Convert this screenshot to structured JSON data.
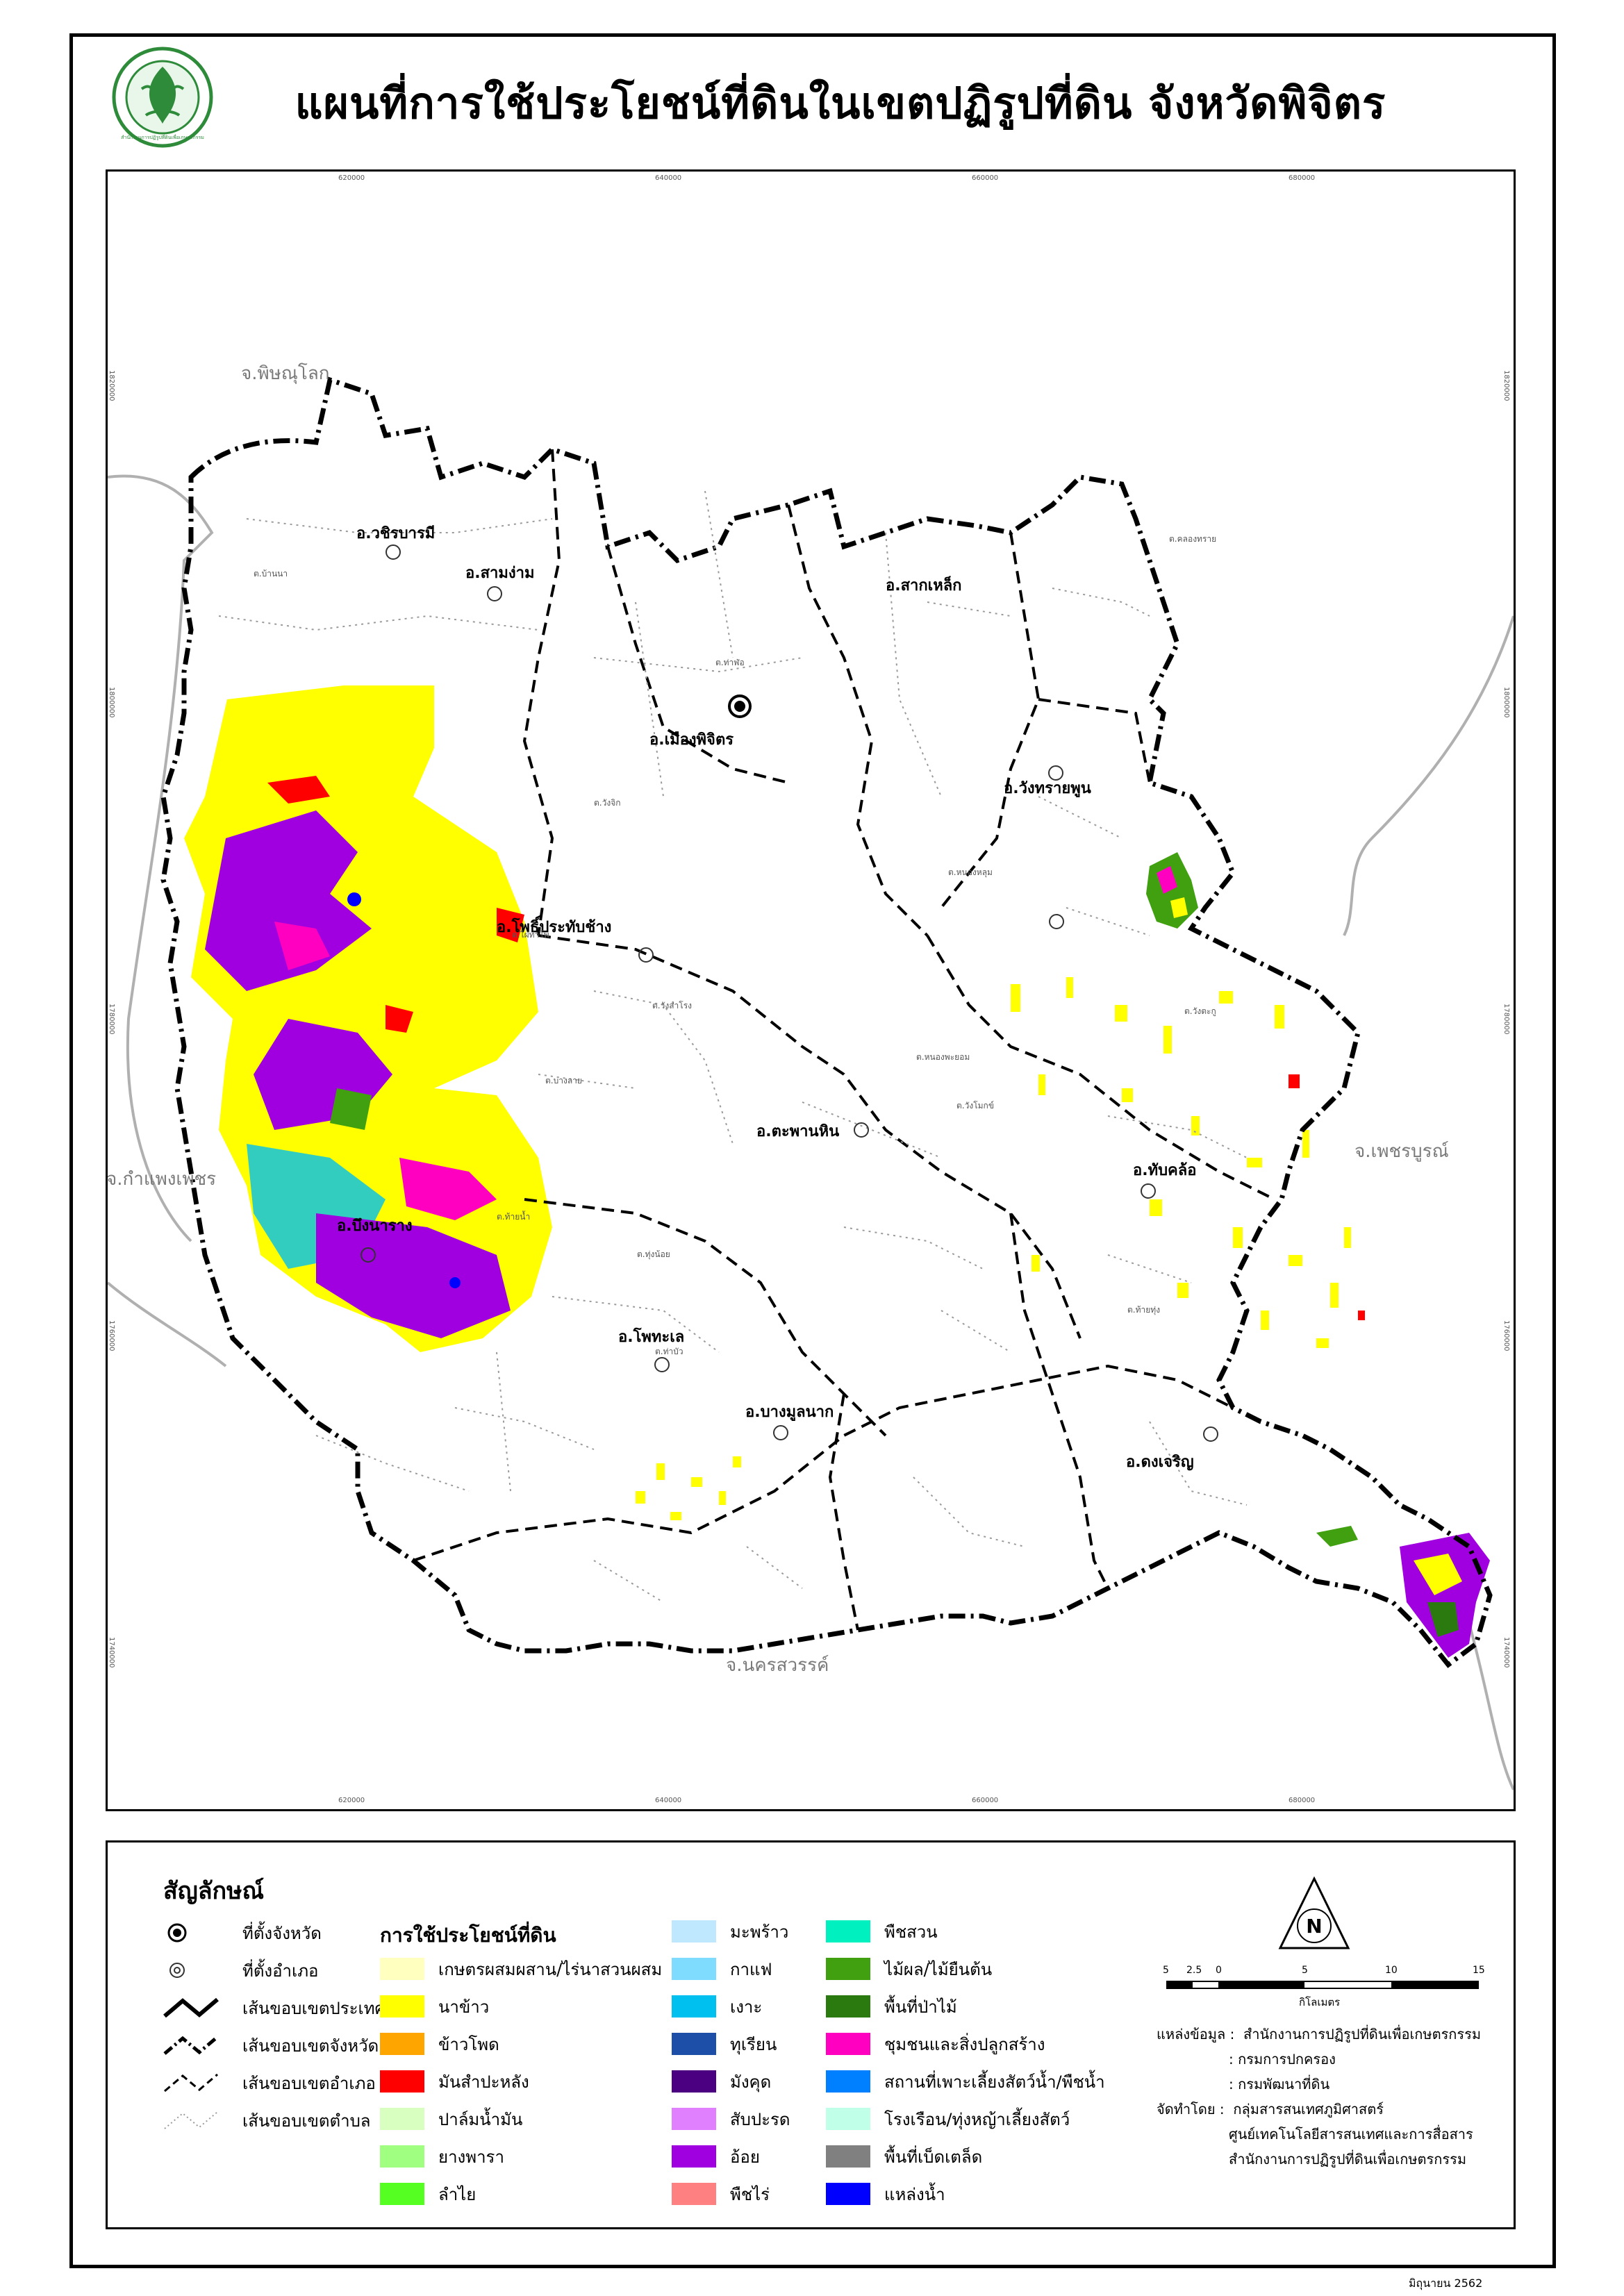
{
  "title": "แผนที่การใช้ประโยชน์ที่ดินในเขตปฏิรูปที่ดิน จังหวัดพิจิตร",
  "logo": {
    "icon": "alro-seal-icon",
    "seal_text": "สำนักงานการปฏิรูปที่ดินเพื่อเกษตรกรรม"
  },
  "grid": {
    "x_ticks": [
      "620000",
      "640000",
      "660000",
      "680000"
    ],
    "y_ticks": [
      "1820000",
      "1800000",
      "1780000",
      "1760000",
      "1740000"
    ]
  },
  "map": {
    "provinces": [
      "จ.พิษณุโลก",
      "จ.กำแพงเพชร",
      "จ.เพชรบูรณ์",
      "จ.นครสวรรค์"
    ],
    "districts": [
      "อ.วชิรบารมี",
      "อ.สามง่าม",
      "อ.เมืองพิจิตร",
      "อ.สากเหล็ก",
      "อ.วังทรายพูน",
      "อ.โพธิ์ประทับช้าง",
      "อ.ตะพานหิน",
      "อ.ทับคล้อ",
      "อ.บึงนาราง",
      "อ.โพทะเล",
      "อ.บางมูลนาก",
      "อ.ดงเจริญ"
    ],
    "subdistricts": [
      "ต.หนองพะยอม",
      "ต.วังโมกข์",
      "ต.คลองทราย",
      "ต.บ้านนา",
      "ต.ท่าฬ่อ",
      "ต.วังจิก",
      "ต.ไผ่ท่าโพ",
      "ต.วังสำโรง",
      "ต.บางลาย",
      "ต.ท่าบัว",
      "ต.ท้ายน้ำ",
      "ต.ทุ่งน้อย",
      "ต.วังตะกู",
      "ต.หนองหลุม",
      "ต.ท้ายทุ่ง"
    ]
  },
  "legend": {
    "title": "สัญลักษณ์",
    "symbols": [
      {
        "label": "ที่ตั้งจังหวัด",
        "icon": "province-seat-icon"
      },
      {
        "label": "ที่ตั้งอำเภอ",
        "icon": "district-seat-icon"
      },
      {
        "label": "เส้นขอบเขตประเทศ",
        "icon": "country-boundary-line-icon"
      },
      {
        "label": "เส้นขอบเขตจังหวัด",
        "icon": "province-boundary-line-icon"
      },
      {
        "label": "เส้นขอบเขตอำเภอ",
        "icon": "district-boundary-line-icon"
      },
      {
        "label": "เส้นขอบเขตตำบล",
        "icon": "subdistrict-boundary-line-icon"
      }
    ],
    "landuse_title": "การใช้ประโยชน์ที่ดิน",
    "landuse_columns": [
      [
        {
          "label": "เกษตรผสมผสาน/ไร่นาสวนผสม",
          "color": "#ffffc0"
        },
        {
          "label": "นาข้าว",
          "color": "#ffff00"
        },
        {
          "label": "ข้าวโพด",
          "color": "#ffa500"
        },
        {
          "label": "มันสำปะหลัง",
          "color": "#ff0000"
        },
        {
          "label": "ปาล์มน้ำมัน",
          "color": "#d8ffc0"
        },
        {
          "label": "ยางพารา",
          "color": "#a0ff80"
        },
        {
          "label": "ลำไย",
          "color": "#55ff22"
        }
      ],
      [
        {
          "label": "มะพร้าว",
          "color": "#bfe8ff"
        },
        {
          "label": "กาแฟ",
          "color": "#7fdcff"
        },
        {
          "label": "เงาะ",
          "color": "#00c0f0"
        },
        {
          "label": "ทุเรียน",
          "color": "#1e4fa8"
        },
        {
          "label": "มังคุด",
          "color": "#4b0082"
        },
        {
          "label": "สับปะรด",
          "color": "#e080ff"
        },
        {
          "label": "อ้อย",
          "color": "#a000e0"
        },
        {
          "label": "พืชไร่",
          "color": "#ff8080"
        }
      ],
      [
        {
          "label": "พืชสวน",
          "color": "#00f0c0"
        },
        {
          "label": "ไม้ผล/ไม้ยืนต้น",
          "color": "#40a010"
        },
        {
          "label": "พื้นที่ป่าไม้",
          "color": "#2a7a10"
        },
        {
          "label": "ชุมชนและสิ่งปลูกสร้าง",
          "color": "#ff00c0"
        },
        {
          "label": "สถานที่เพาะเลี้ยงสัตว์น้ำ/พืชน้ำ",
          "color": "#0080ff"
        },
        {
          "label": "โรงเรือน/ทุ่งหญ้าเลี้ยงสัตว์",
          "color": "#c0ffe8"
        },
        {
          "label": "พื้นที่เบ็ดเตล็ด",
          "color": "#808080"
        },
        {
          "label": "แหล่งน้ำ",
          "color": "#0000ff"
        }
      ]
    ]
  },
  "scalebar": {
    "ticks": [
      "5",
      "2.5",
      "0",
      "5",
      "10",
      "15"
    ],
    "unit": "กิโลเมตร"
  },
  "credits": {
    "source_label": "แหล่งข้อมูล :",
    "sources": [
      "สำนักงานการปฏิรูปที่ดินเพื่อเกษตรกรรม",
      ": กรมการปกครอง",
      ": กรมพัฒนาที่ดิน"
    ],
    "producer_label": "จัดทำโดย :",
    "producers": [
      "กลุ่มสารสนเทศภูมิศาสตร์",
      "ศูนย์เทคโนโลยีสารสนเทศและการสื่อสาร",
      "สำนักงานการปฏิรูปที่ดินเพื่อเกษตรกรรม"
    ]
  },
  "date": "มิถุนายน 2562"
}
